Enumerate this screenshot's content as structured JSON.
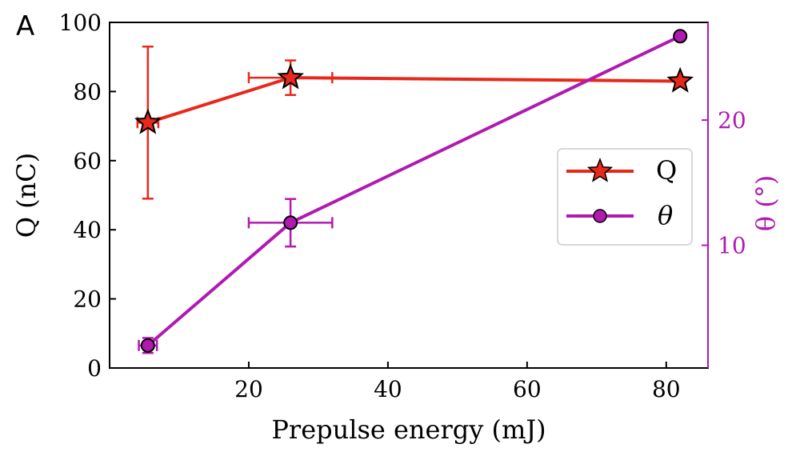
{
  "chart_data": {
    "type": "line",
    "panel_label": "A",
    "xlabel": "Prepulse energy (mJ)",
    "ylabel_left": "Q (nC)",
    "ylabel_right": "θ (°)",
    "xlim": [
      0,
      86
    ],
    "ylim_left": [
      0,
      100
    ],
    "ylim_right": [
      0.2,
      27.8
    ],
    "x_ticks": [
      20,
      40,
      60,
      80
    ],
    "y_left_ticks": [
      0,
      20,
      40,
      60,
      80,
      100
    ],
    "y_right_ticks": [
      10,
      20
    ],
    "series": [
      {
        "name": "Q",
        "axis": "left",
        "color": "#e8281a",
        "marker": "star",
        "points": [
          {
            "x": 5.5,
            "y": 71,
            "yerr": [
              22,
              22
            ],
            "xerr": [
              1.5,
              1.5
            ]
          },
          {
            "x": 26,
            "y": 84,
            "yerr": [
              5,
              5
            ],
            "xerr": [
              6,
              6
            ]
          },
          {
            "x": 82,
            "y": 83,
            "yerr": [
              0,
              0
            ],
            "xerr": [
              0,
              0
            ]
          }
        ]
      },
      {
        "name": "θ",
        "axis": "right",
        "color": "#b01ab0",
        "marker": "circle",
        "points": [
          {
            "x": 5.5,
            "y": 2.0,
            "yerr": [
              0.6,
              0.6
            ],
            "xerr": [
              1.3,
              1.3
            ]
          },
          {
            "x": 26,
            "y": 11.8,
            "yerr": [
              1.9,
              1.9
            ],
            "xerr": [
              6,
              6
            ]
          },
          {
            "x": 82,
            "y": 26.7,
            "yerr": [
              0,
              0
            ],
            "xerr": [
              0,
              0
            ]
          }
        ]
      }
    ],
    "legend": {
      "position": "center-right",
      "entries": [
        {
          "label": "Q"
        },
        {
          "label": "θ"
        }
      ]
    }
  }
}
